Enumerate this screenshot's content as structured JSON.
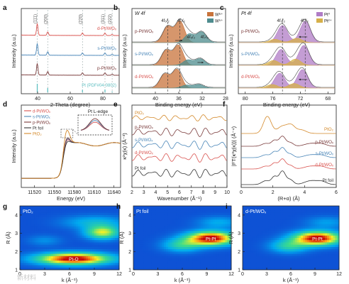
{
  "figure": {
    "watermark": "新材料"
  },
  "chart_data": [
    {
      "id": "a",
      "panel_label": "a",
      "type": "line",
      "xlabel": "2-Theta (degree)",
      "ylabel": "Intensity (a.u.)",
      "xlim": [
        30,
        90
      ],
      "xticks": [
        40,
        60,
        80
      ],
      "series": [
        {
          "name": "d-Pt/WOₓ",
          "color": "#d9534f",
          "offset": 3
        },
        {
          "name": "s-Pt/WOₓ",
          "color": "#4a86b8",
          "offset": 2
        },
        {
          "name": "p-Pt/WOₓ",
          "color": "#7a3b3b",
          "offset": 1
        }
      ],
      "peaks": [
        {
          "x": 39.8,
          "label": "(111)"
        },
        {
          "x": 46.2,
          "label": "(200)"
        },
        {
          "x": 67.5,
          "label": "(220)"
        },
        {
          "x": 81.3,
          "label": "(311)"
        },
        {
          "x": 85.7,
          "label": "(222)"
        }
      ],
      "reference": {
        "label": "Pt (PDF#04-0802)",
        "color": "#5fbfc1",
        "sticks": [
          39.8,
          46.2,
          67.5,
          81.3,
          85.7
        ],
        "heights": [
          1.0,
          0.5,
          0.3,
          0.33,
          0.1
        ]
      }
    },
    {
      "id": "b",
      "panel_label": "b",
      "title": "W 4f",
      "type": "line",
      "xlabel": "Binding energy (eV)",
      "ylabel": "Intensity (a.u.)",
      "xlim": [
        44,
        28
      ],
      "xticks": [
        40,
        36,
        32,
        28
      ],
      "series": [
        {
          "name": "p-Pt/WOₓ",
          "offset": 2
        },
        {
          "name": "s-Pt/WOₓ",
          "offset": 1
        },
        {
          "name": "d-Pt/WOₓ",
          "offset": 0
        }
      ],
      "legend": [
        {
          "name": "W⁶⁺",
          "color": "#c8733b"
        },
        {
          "name": "W⁵⁺",
          "color": "#4e8c8e"
        }
      ],
      "annotations": [
        "4f₅/₂",
        "4f₇/₂",
        "4f₅/₂",
        "4f₇/₂"
      ],
      "components": {
        "W6+": [
          {
            "center": 37.9,
            "amp": 0.75
          },
          {
            "center": 35.8,
            "amp": 1.0
          }
        ],
        "W5+": [
          {
            "center": 34.2,
            "amp": 0.45
          },
          {
            "center": 32.1,
            "amp": 0.55
          }
        ]
      }
    },
    {
      "id": "c",
      "panel_label": "c",
      "title": "Pt 4f",
      "type": "line",
      "xlabel": "Binding energy (eV)",
      "ylabel": "Intensity (a.u.)",
      "xlim": [
        81,
        67
      ],
      "xticks": [
        80,
        76,
        72,
        68
      ],
      "series": [
        {
          "name": "p-Pt/WOₓ",
          "offset": 2
        },
        {
          "name": "s-Pt/WOₓ",
          "offset": 1
        },
        {
          "name": "d-Pt/WOₓ",
          "offset": 0
        }
      ],
      "legend": [
        {
          "name": "Pt⁰",
          "color": "#b07cc6"
        },
        {
          "name": "Pt²⁺",
          "color": "#d6b04a"
        }
      ],
      "annotations": [
        "4f₅/₂",
        "4f₇/₂"
      ],
      "components": {
        "Pt0": [
          {
            "center": 74.6,
            "amp": 0.8
          },
          {
            "center": 71.3,
            "amp": 1.0
          }
        ],
        "Pt2+": [
          {
            "center": 75.7,
            "amp": 0.35
          },
          {
            "center": 72.5,
            "amp": 0.45
          }
        ]
      }
    },
    {
      "id": "d",
      "panel_label": "d",
      "type": "line",
      "xlabel": "Energy (eV)",
      "ylabel": "Intensity (a.u.)",
      "xlim": [
        11500,
        11650
      ],
      "xticks": [
        11520,
        11550,
        11580,
        11610,
        11640
      ],
      "inset_label": "Pt L-edge",
      "series": [
        {
          "name": "d-Pt/WOₓ",
          "color": "#d9534f"
        },
        {
          "name": "s-Pt/WOₓ",
          "color": "#4a86b8"
        },
        {
          "name": "p-Pt/WOₓ",
          "color": "#7a3b3b"
        },
        {
          "name": "Pt foil",
          "color": "#333333"
        },
        {
          "name": "PtO₂",
          "color": "#d4892a"
        }
      ],
      "edge_energy": 11563
    },
    {
      "id": "e",
      "panel_label": "e",
      "type": "line",
      "xlabel": "Wavenumber (Å⁻¹)",
      "ylabel": "κ²χ(κ) (Å⁻³)",
      "xlim": [
        2,
        10
      ],
      "xticks": [
        2,
        3,
        4,
        5,
        6,
        7,
        8,
        9,
        10
      ],
      "series": [
        {
          "name": "PtO₂",
          "color": "#d4892a",
          "offset": 5
        },
        {
          "name": "p-Pt/WOₓ",
          "color": "#7a3b3b",
          "offset": 4
        },
        {
          "name": "s-Pt/WOₓ",
          "color": "#4a86b8",
          "offset": 3
        },
        {
          "name": "d-Pt/WOₓ",
          "color": "#d9534f",
          "offset": 2
        },
        {
          "name": "Pt foil",
          "color": "#333333",
          "offset": 1
        }
      ]
    },
    {
      "id": "f",
      "panel_label": "f",
      "type": "line",
      "xlabel": "(R+α) (Å)",
      "ylabel": "|FT(κ³χ(κ))| (Å⁻⁴)",
      "xlim": [
        0,
        6
      ],
      "xticks": [
        0,
        2,
        4,
        6
      ],
      "series": [
        {
          "name": "PtO₂",
          "color": "#d4892a",
          "offset": 5
        },
        {
          "name": "p-Pt/WOₓ",
          "color": "#7a3b3b",
          "offset": 4
        },
        {
          "name": "s-Pt/WOₓ",
          "color": "#4a86b8",
          "offset": 3
        },
        {
          "name": "d-Pt/WOₓ",
          "color": "#d9534f",
          "offset": 2
        },
        {
          "name": "Pt foil",
          "color": "#333333",
          "offset": 1
        }
      ]
    },
    {
      "id": "g",
      "panel_label": "g",
      "type": "heatmap",
      "title": "PtO₂",
      "xlabel": "k (Å⁻¹)",
      "ylabel": "R (Å)",
      "xlim": [
        0,
        12
      ],
      "ylim": [
        1,
        4.5
      ],
      "xticks": [
        0,
        3,
        6,
        9,
        12
      ],
      "yticks": [
        1,
        2,
        3,
        4
      ],
      "hotspots": [
        {
          "k": 6.5,
          "R": 1.6,
          "sk": 3.0,
          "sR": 0.22,
          "amp": 1.0
        },
        {
          "k": 10.0,
          "R": 3.05,
          "sk": 1.4,
          "sR": 0.25,
          "amp": 0.6
        },
        {
          "k": 9.0,
          "R": 3.6,
          "sk": 2.6,
          "sR": 0.25,
          "amp": 0.22
        },
        {
          "k": 3.0,
          "R": 2.6,
          "sk": 1.4,
          "sR": 0.2,
          "amp": 0.12
        }
      ],
      "peak_label": "Pt-O",
      "peak_label_k": 6.5,
      "peak_label_R": 1.6
    },
    {
      "id": "h",
      "panel_label": "h",
      "type": "heatmap",
      "title": "Pt foil",
      "xlabel": "k (Å⁻¹)",
      "ylabel": "R (Å)",
      "xlim": [
        0,
        12
      ],
      "ylim": [
        1,
        4.5
      ],
      "xticks": [
        0,
        3,
        6,
        9,
        12
      ],
      "yticks": [
        1,
        2,
        3,
        4
      ],
      "hotspots": [
        {
          "k": 9.5,
          "R": 2.72,
          "sk": 2.0,
          "sR": 0.26,
          "amp": 1.0
        },
        {
          "k": 6.0,
          "R": 2.35,
          "sk": 1.6,
          "sR": 0.25,
          "amp": 0.35
        },
        {
          "k": 10.5,
          "R": 3.6,
          "sk": 1.8,
          "sR": 0.22,
          "amp": 0.18
        }
      ],
      "peak_label": "Pt-Pt",
      "peak_label_k": 9.5,
      "peak_label_R": 2.72
    },
    {
      "id": "i",
      "panel_label": "i",
      "type": "heatmap",
      "title": "d-Pt/WOₓ",
      "xlabel": "k (Å⁻¹)",
      "ylabel": "R (Å)",
      "xlim": [
        0,
        12
      ],
      "ylim": [
        1,
        4.5
      ],
      "xticks": [
        0,
        3,
        6,
        9,
        12
      ],
      "yticks": [
        1,
        2,
        3,
        4
      ],
      "hotspots": [
        {
          "k": 9.3,
          "R": 2.72,
          "sk": 2.0,
          "sR": 0.26,
          "amp": 1.0
        },
        {
          "k": 5.8,
          "R": 2.3,
          "sk": 1.6,
          "sR": 0.25,
          "amp": 0.35
        },
        {
          "k": 10.5,
          "R": 3.6,
          "sk": 1.8,
          "sR": 0.22,
          "amp": 0.15
        }
      ],
      "peak_label": "Pt-Pt",
      "peak_label_k": 9.3,
      "peak_label_R": 2.72
    }
  ]
}
